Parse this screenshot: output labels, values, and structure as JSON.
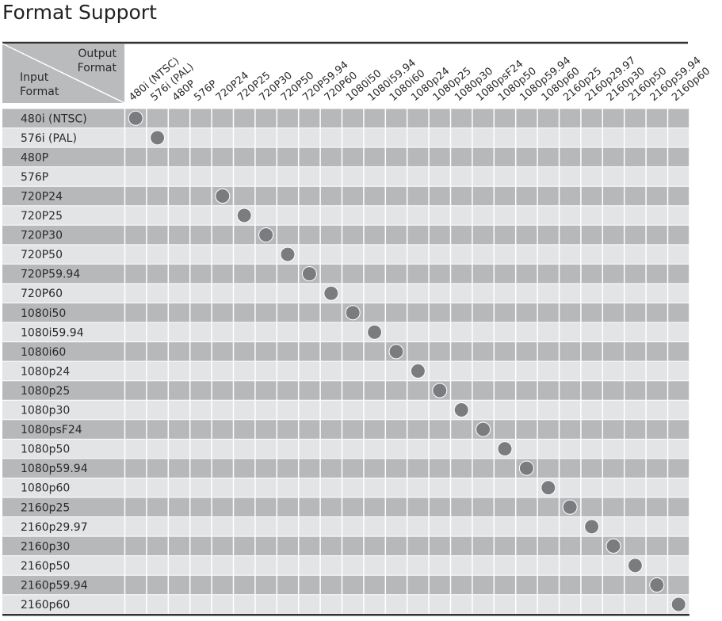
{
  "header": {
    "title": "Format Support"
  },
  "table": {
    "corner_output": [
      "Output",
      "Format"
    ],
    "corner_input": [
      "Input",
      "Format"
    ],
    "columns": [
      "480i (NTSC)",
      "576i (PAL)",
      "480P",
      "576P",
      "720P24",
      "720P25",
      "720P30",
      "720P50",
      "720P59.94",
      "720P60",
      "1080i50",
      "1080i59.94",
      "1080i60",
      "1080p24",
      "1080p25",
      "1080p30",
      "1080psF24",
      "1080p50",
      "1080p59.94",
      "1080p60",
      "2160p25",
      "2160p29.97",
      "2160p30",
      "2160p50",
      "2160p59.94",
      "2160p60"
    ],
    "rows": [
      {
        "label": "480i (NTSC)",
        "supports": [
          0
        ]
      },
      {
        "label": "576i (PAL)",
        "supports": [
          1
        ]
      },
      {
        "label": "480P",
        "supports": []
      },
      {
        "label": "576P",
        "supports": []
      },
      {
        "label": "720P24",
        "supports": [
          4
        ]
      },
      {
        "label": "720P25",
        "supports": [
          5
        ]
      },
      {
        "label": "720P30",
        "supports": [
          6
        ]
      },
      {
        "label": "720P50",
        "supports": [
          7
        ]
      },
      {
        "label": "720P59.94",
        "supports": [
          8
        ]
      },
      {
        "label": "720P60",
        "supports": [
          9
        ]
      },
      {
        "label": "1080i50",
        "supports": [
          10
        ]
      },
      {
        "label": "1080i59.94",
        "supports": [
          11
        ]
      },
      {
        "label": "1080i60",
        "supports": [
          12
        ]
      },
      {
        "label": "1080p24",
        "supports": [
          13
        ]
      },
      {
        "label": "1080p25",
        "supports": [
          14
        ]
      },
      {
        "label": "1080p30",
        "supports": [
          15
        ]
      },
      {
        "label": "1080psF24",
        "supports": [
          16
        ]
      },
      {
        "label": "1080p50",
        "supports": [
          17
        ]
      },
      {
        "label": "1080p59.94",
        "supports": [
          18
        ]
      },
      {
        "label": "1080p60",
        "supports": [
          19
        ]
      },
      {
        "label": "2160p25",
        "supports": [
          20
        ]
      },
      {
        "label": "2160p29.97",
        "supports": [
          21
        ]
      },
      {
        "label": "2160p30",
        "supports": [
          22
        ]
      },
      {
        "label": "2160p50",
        "supports": [
          23
        ]
      },
      {
        "label": "2160p59.94",
        "supports": [
          24
        ]
      },
      {
        "label": "2160p60",
        "supports": [
          25
        ]
      }
    ]
  }
}
